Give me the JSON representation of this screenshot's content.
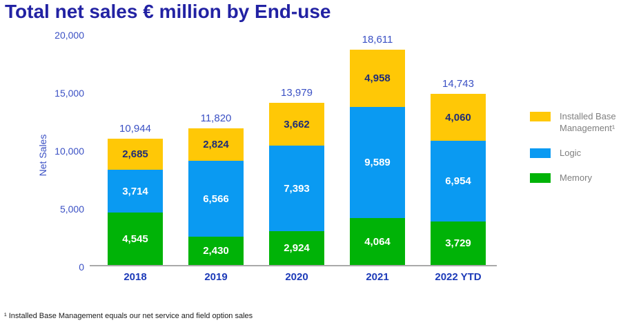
{
  "chart_data": {
    "type": "bar",
    "stacked": true,
    "title": "Total net sales € million by End-use",
    "ylabel": "Net Sales",
    "xlabel": "",
    "categories": [
      "2018",
      "2019",
      "2020",
      "2021",
      "2022 YTD"
    ],
    "series": [
      {
        "name": "Memory",
        "color": "#00B307",
        "label_color": "#FFFFFF",
        "values": [
          4545,
          2430,
          2924,
          4064,
          3729
        ]
      },
      {
        "name": "Logic",
        "color": "#0A9AF2",
        "label_color": "#FFFFFF",
        "values": [
          3714,
          6566,
          7393,
          9589,
          6954
        ]
      },
      {
        "name": "Installed Base Management¹",
        "color": "#FFC806",
        "label_color": "#1F2D78",
        "values": [
          2685,
          2824,
          3662,
          4958,
          4060
        ]
      }
    ],
    "totals": [
      10944,
      11820,
      13979,
      18611,
      14743
    ],
    "ylim": [
      0,
      20000
    ],
    "ytick_step": 5000,
    "yticks": [
      "0",
      "5,000",
      "10,000",
      "15,000",
      "20,000"
    ],
    "grid": false,
    "legend_position": "right",
    "legend": [
      "Installed Base Management¹",
      "Logic",
      "Memory"
    ]
  },
  "footnote": "¹ Installed Base Management equals our net service and field option sales",
  "colors": {
    "title": "#2222A3",
    "axis-tick": "#3A50C4",
    "category-label": "#1C3AB8",
    "total-label": "#3A50C4",
    "axis-line": "#A9A9A9",
    "legend-text": "#7F7F7F",
    "footnote-text": "#1A1A1A"
  }
}
